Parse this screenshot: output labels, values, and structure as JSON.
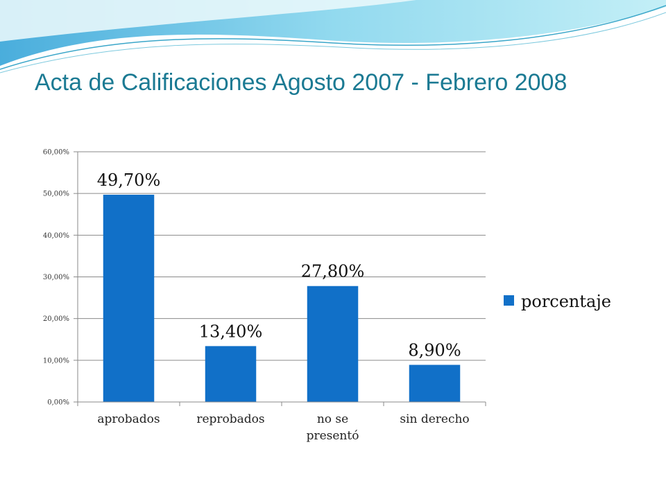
{
  "slide": {
    "title": "Acta de Calificaciones Agosto 2007 - Febrero 2008",
    "accent_color": "#1b7a93",
    "decoration": "blue-wave-header"
  },
  "chart_data": {
    "type": "bar",
    "categories": [
      "aprobados",
      "reprobados",
      "no se presentó",
      "sin derecho"
    ],
    "category_lines": [
      [
        "aprobados"
      ],
      [
        "reprobados"
      ],
      [
        "no se",
        "presentó"
      ],
      [
        "sin derecho"
      ]
    ],
    "series": [
      {
        "name": "porcentaje",
        "values": [
          49.7,
          13.4,
          27.8,
          8.9
        ],
        "labels": [
          "49,70%",
          "13,40%",
          "27,80%",
          "8,90%"
        ],
        "color": "#1170c8"
      }
    ],
    "ylim": [
      0,
      60
    ],
    "yticks": [
      0,
      10,
      20,
      30,
      40,
      50,
      60
    ],
    "ytick_labels": [
      "0,00%",
      "10,00%",
      "20,00%",
      "30,00%",
      "40,00%",
      "50,00%",
      "60,00%"
    ],
    "grid": true,
    "legend": "right"
  }
}
